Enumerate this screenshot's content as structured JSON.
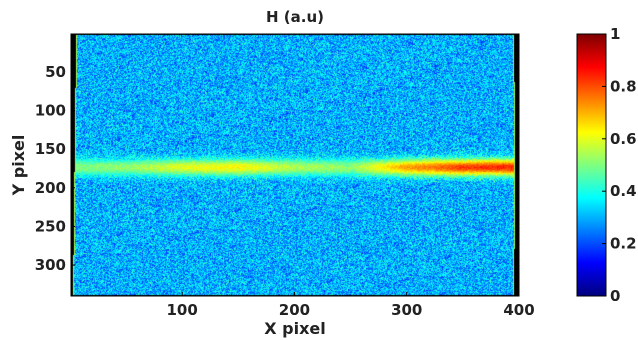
{
  "chart_data": {
    "type": "heatmap",
    "title": "H (a.u)",
    "xlabel": "X pixel",
    "ylabel": "Y pixel",
    "xlim": [
      1,
      400
    ],
    "ylim": [
      1,
      340
    ],
    "y_reversed": true,
    "x_ticks": [
      100,
      200,
      300,
      400
    ],
    "y_ticks": [
      50,
      100,
      150,
      200,
      250,
      300
    ],
    "x_tick_labels": [
      "100",
      "200",
      "300",
      "400"
    ],
    "y_tick_labels": [
      "50",
      "100",
      "150",
      "200",
      "250",
      "300"
    ],
    "colormap": "jet",
    "color_range": [
      0,
      1
    ],
    "colorbar_ticks": [
      0,
      0.2,
      0.4,
      0.6,
      0.8,
      1
    ],
    "colorbar_tick_labels": [
      "0",
      "0.2",
      "0.4",
      "0.6",
      "0.8",
      "1"
    ],
    "background_level": 0.3,
    "horizontal_band": {
      "y_center": 173,
      "profile_x": [
        1,
        50,
        100,
        150,
        200,
        250,
        300,
        350,
        400
      ],
      "profile_value": [
        0.5,
        0.52,
        0.6,
        0.63,
        0.55,
        0.52,
        0.72,
        0.82,
        0.85
      ]
    },
    "border_color": "#000000"
  }
}
